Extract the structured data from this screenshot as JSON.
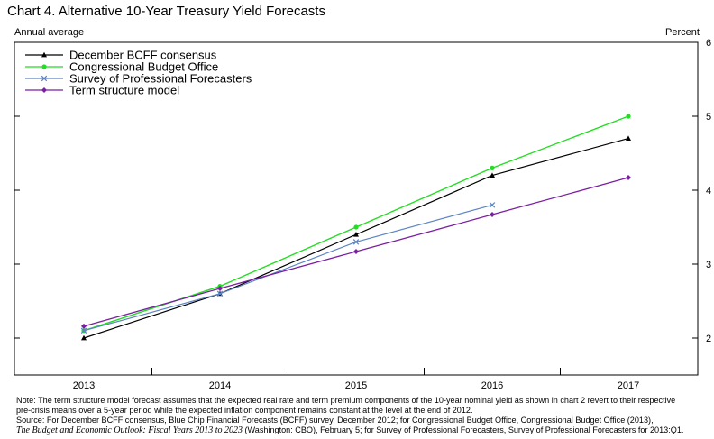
{
  "chart_title": "Chart 4. Alternative 10-Year Treasury Yield Forecasts",
  "left_axis_unit": "Annual average",
  "right_axis_unit": "Percent",
  "chart_data": {
    "type": "line",
    "title": "Chart 4. Alternative 10-Year Treasury Yield Forecasts",
    "categories": [
      "2013",
      "2014",
      "2015",
      "2016",
      "2017"
    ],
    "ylim": [
      1.5,
      6
    ],
    "yticks": [
      2,
      3,
      4,
      5,
      6
    ],
    "grid": false,
    "legend_position": "top-left",
    "series": [
      {
        "name": "December BCFF consensus",
        "color": "#000000",
        "marker": "triangle",
        "values": [
          2.0,
          2.6,
          3.4,
          4.2,
          4.7
        ]
      },
      {
        "name": "Congressional Budget Office",
        "color": "#22dd22",
        "marker": "circle",
        "values": [
          2.1,
          2.7,
          3.5,
          4.3,
          5.0
        ]
      },
      {
        "name": "Survey of Professional Forecasters",
        "color": "#5b84c4",
        "marker": "x",
        "values": [
          2.1,
          2.6,
          3.3,
          3.8,
          null
        ]
      },
      {
        "name": "Term structure model",
        "color": "#7b1fa2",
        "marker": "diamond",
        "values": [
          2.16,
          2.67,
          3.17,
          3.67,
          4.17
        ]
      }
    ]
  },
  "notes": {
    "note_line1": "Note:  The term structure model forecast assumes that the expected real rate and term premium components of the 10-year nominal yield as shown in chart 2 revert to their respective",
    "note_line2": "pre-crisis means over a 5-year period while the expected inflation component remains constant at the level at the end of 2012.",
    "source_line1": "Source:  For December BCFF consensus, Blue Chip Financial Forecasts (BCFF) survey, December 2012; for Congressional Budget Office, Congressional Budget Office (2013),",
    "source_line2_italic": "The Budget and Economic Outlook:  Fiscal Years 2013 to 2023",
    "source_line2_rest": " (Washington:  CBO), February 5; for Survey of Professional Forecasters, Survey of Professional Forecasters for 2013:Q1."
  }
}
